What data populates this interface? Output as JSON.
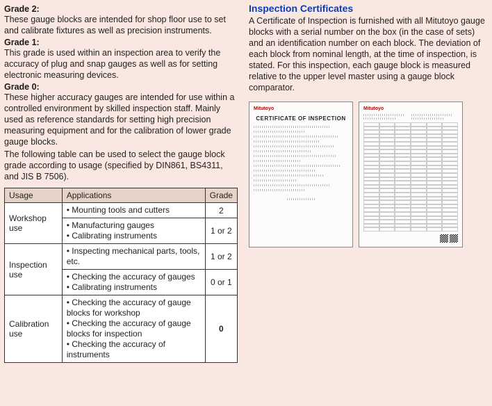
{
  "left": {
    "grades": [
      {
        "title": "Grade 2:",
        "body": "These gauge blocks are intended for shop floor use to set and calibrate fixtures as well as precision instruments."
      },
      {
        "title": "Grade 1:",
        "body": "This grade is used within an inspection area to verify the accuracy of plug and snap gauges as well as for setting electronic measuring devices."
      },
      {
        "title": "Grade 0:",
        "body": "These higher accuracy gauges are intended for use within a controlled environment by skilled inspection staff. Mainly used as reference standards for setting high precision measuring equipment and for the calibration of lower grade gauge blocks."
      }
    ],
    "tableIntro": "The following table can be used to select the gauge block grade according to usage (specified by DIN861, BS4311, and JIS B 7506).",
    "headers": {
      "usage": "Usage",
      "apps": "Applications",
      "grade": "Grade"
    },
    "rows": [
      {
        "usage": "Workshop use",
        "appsList": [
          "Mounting tools and cutters"
        ],
        "grade": "2"
      },
      {
        "appsList": [
          "Manufacturing gauges",
          "Calibrating instruments"
        ],
        "grade": "1 or 2"
      },
      {
        "usage": "Inspection use",
        "appsList": [
          "Inspecting mechanical parts, tools, etc."
        ],
        "grade": "1 or 2"
      },
      {
        "appsList": [
          "Checking the accuracy of gauges",
          "Calibrating instruments"
        ],
        "grade": "0 or 1"
      },
      {
        "usage": "Calibration use",
        "appsList": [
          "Checking the accuracy of gauge blocks for workshop",
          "Checking the accuracy of gauge blocks for inspection",
          "Checking the accuracy of instruments"
        ],
        "grade": "0",
        "boldGrade": true
      }
    ]
  },
  "right": {
    "title": "Inspection Certificates",
    "body": "A Certificate of Inspection is furnished with all Mitutoyo gauge blocks with a serial number on the box (in the case of sets) and an identification number on each block. The deviation of each block from nominal length, at the time of inspection, is stated. For this inspection, each gauge block is measured relative to the upper level master using a gauge block comparator.",
    "cert1": {
      "logo": "Mitutoyo",
      "title": "CERTIFICATE OF INSPECTION"
    },
    "cert2": {
      "logo": "Mitutoyo"
    }
  },
  "colors": {
    "pageBg": "#f9e8e1",
    "headerBg": "#e6d3c7",
    "accent": "#0a3db5"
  }
}
